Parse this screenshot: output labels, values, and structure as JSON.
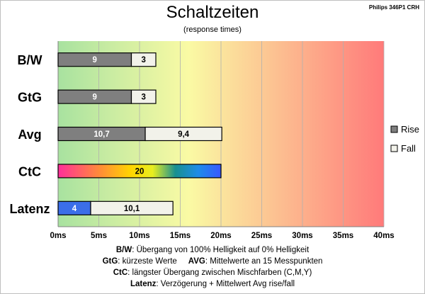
{
  "header": {
    "title": "Schaltzeiten",
    "subtitle": "(response times)",
    "model": "Philips 346P1 CRH"
  },
  "notes": [
    {
      "key": "B/W",
      "text": ":  Übergang von 100% Helligkeit auf 0% Helligkeit"
    },
    {
      "key": "GtG",
      "text": ": kürzeste  Werte",
      "key2": "AVG",
      "text2": ": Mittelwerte  an 15 Messpunkten"
    },
    {
      "key": "CtC",
      "text": ": längster Übergang  zwischen Mischfarben (C,M,Y)"
    },
    {
      "key": "Latenz",
      "text": ": Verzögerung  + Mittelwert  Avg rise/fall"
    }
  ],
  "chart_data": {
    "type": "bar",
    "orientation": "horizontal",
    "stacked": true,
    "categories": [
      "B/W",
      "GtG",
      "Avg",
      "CtC",
      "Latenz"
    ],
    "series": [
      {
        "name": "Rise",
        "values": [
          9,
          9,
          10.7,
          null,
          4
        ],
        "labels": [
          "9",
          "9",
          "10,7",
          "",
          "4"
        ],
        "color": "#7f7f7f"
      },
      {
        "name": "Fall",
        "values": [
          3,
          3,
          9.4,
          null,
          10.1
        ],
        "labels": [
          "3",
          "3",
          "9,4",
          "",
          "10,1"
        ],
        "color": "#f2f2ea"
      }
    ],
    "special": {
      "category": "CtC",
      "value": 20,
      "label": "20",
      "gradient": [
        "#ff3ca0",
        "#ff8a3a",
        "#ffd60a",
        "#f2f21a",
        "#1a8a8a",
        "#1a8aff",
        "#3a5aff"
      ]
    },
    "latency_rise_color": "#3b6ee8",
    "xlim": [
      0,
      40
    ],
    "xticks": [
      "0ms",
      "5ms",
      "10ms",
      "15ms",
      "20ms",
      "25ms",
      "30ms",
      "35ms",
      "40ms"
    ],
    "xtick_step": 5,
    "background_gradient": [
      "#aee4a6",
      "#f8f8a8",
      "#ff7a78"
    ],
    "grid": true,
    "legend_position": "right"
  }
}
